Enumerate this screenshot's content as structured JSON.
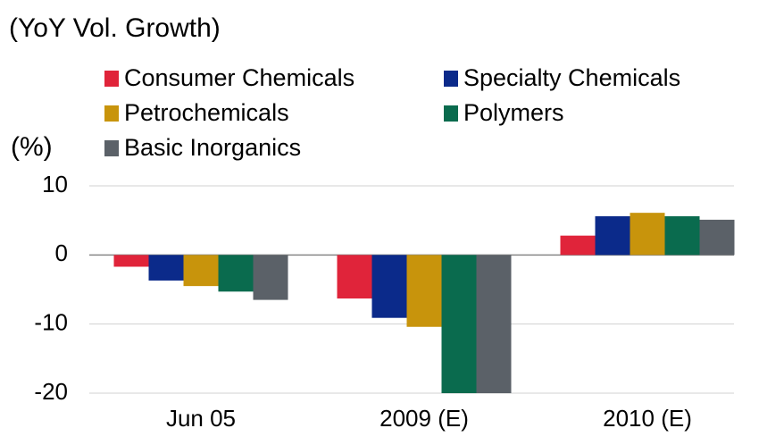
{
  "chart_data": {
    "type": "bar",
    "title": "(YoY Vol. Growth)",
    "y_label": "(%)",
    "categories": [
      "Jun 05",
      "2009 (E)",
      "2010 (E)"
    ],
    "series": [
      {
        "name": "Consumer Chemicals",
        "color": "#e0243a",
        "values": [
          -1.7,
          -6.3,
          2.8
        ]
      },
      {
        "name": "Specialty Chemicals",
        "color": "#0b2a8a",
        "values": [
          -3.7,
          -9.1,
          5.6
        ]
      },
      {
        "name": "Petrochemicals",
        "color": "#c8940c",
        "values": [
          -4.5,
          -10.4,
          6.1
        ]
      },
      {
        "name": "Polymers",
        "color": "#0a6b4e",
        "values": [
          -5.3,
          -20,
          5.6
        ]
      },
      {
        "name": "Basic Inorganics",
        "color": "#5b6168",
        "values": [
          -6.5,
          -20,
          5.1
        ]
      }
    ],
    "ylim": [
      -20,
      10
    ],
    "yticks": [
      10,
      0,
      -10,
      -20
    ],
    "grid": true
  }
}
